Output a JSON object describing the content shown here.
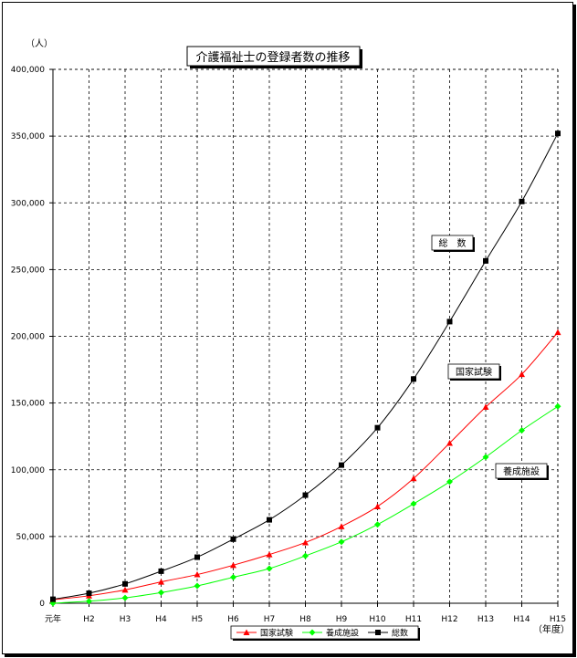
{
  "chart_data": {
    "type": "line",
    "title": "介護福祉士の登録者数の推移",
    "y_unit": "（人）",
    "x_unit": "（年度）",
    "categories": [
      "元年",
      "H2",
      "H3",
      "H4",
      "H5",
      "H6",
      "H7",
      "H8",
      "H9",
      "H10",
      "H11",
      "H12",
      "H13",
      "H14",
      "H15"
    ],
    "ylim": [
      0,
      400000
    ],
    "yticks": [
      0,
      50000,
      100000,
      150000,
      200000,
      250000,
      300000,
      350000,
      400000
    ],
    "ytick_labels": [
      "0",
      "50,000",
      "100,000",
      "150,000",
      "200,000",
      "250,000",
      "300,000",
      "350,000",
      "400,000"
    ],
    "grid": true,
    "legend_position": "bottom",
    "series": [
      {
        "name": "国家試験",
        "color": "#ff0000",
        "marker": "triangle",
        "label": "国家試験",
        "values": [
          2600,
          5600,
          10000,
          16000,
          21500,
          28500,
          36500,
          45500,
          57500,
          72500,
          93500,
          120000,
          147000,
          171500,
          203000
        ]
      },
      {
        "name": "養成施設",
        "color": "#00ff00",
        "marker": "diamond",
        "label": "養成施設",
        "values": [
          0,
          1500,
          4000,
          8000,
          13000,
          19500,
          26000,
          35500,
          46000,
          59000,
          74500,
          91000,
          109500,
          129500,
          147500
        ]
      },
      {
        "name": "総数",
        "color": "#000000",
        "marker": "square",
        "label": "総　数",
        "values": [
          3000,
          7500,
          14500,
          24000,
          34500,
          48000,
          62500,
          81000,
          103500,
          131500,
          168000,
          211000,
          256500,
          301000,
          352000
        ]
      }
    ]
  }
}
